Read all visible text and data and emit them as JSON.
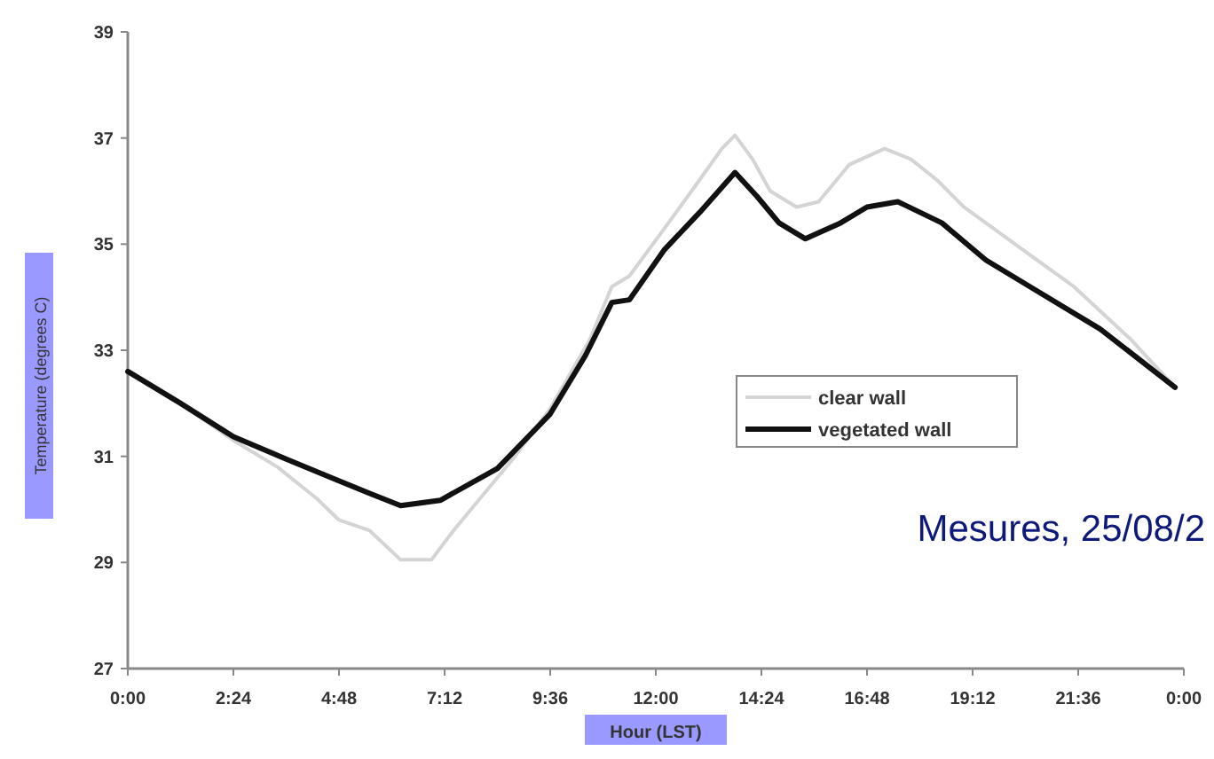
{
  "chart_data": {
    "type": "line",
    "xlabel": "Hour (LST)",
    "ylabel": "Temperature (degrees C)",
    "xlim": [
      0,
      24
    ],
    "ylim": [
      27,
      39
    ],
    "xticks": [
      {
        "value": 0,
        "label": "0:00"
      },
      {
        "value": 2.4,
        "label": "2:24"
      },
      {
        "value": 4.8,
        "label": "4:48"
      },
      {
        "value": 7.2,
        "label": "7:12"
      },
      {
        "value": 9.6,
        "label": "9:36"
      },
      {
        "value": 12,
        "label": "12:00"
      },
      {
        "value": 14.4,
        "label": "14:24"
      },
      {
        "value": 16.8,
        "label": "16:48"
      },
      {
        "value": 19.2,
        "label": "19:12"
      },
      {
        "value": 21.6,
        "label": "21:36"
      },
      {
        "value": 24,
        "label": "0:00"
      }
    ],
    "yticks": [
      27,
      29,
      31,
      33,
      35,
      37,
      39
    ],
    "grid": false,
    "legend": "right",
    "marker": "none",
    "line_style": "solid",
    "annotations": [
      "Mesures, 25/08/2"
    ],
    "series": [
      {
        "name": "clear wall",
        "color": "#d4d4d4",
        "x": [
          0,
          1.2,
          2.4,
          3.4,
          4.3,
          4.8,
          5.5,
          6.2,
          6.9,
          7.4,
          8.0,
          8.8,
          9.6,
          10.5,
          11.0,
          11.4,
          12.2,
          12.9,
          13.5,
          13.8,
          14.2,
          14.6,
          15.2,
          15.7,
          16.4,
          17.2,
          17.8,
          18.4,
          19.0,
          20.5,
          21.5,
          22.8,
          23.8
        ],
        "values": [
          32.6,
          32.0,
          31.3,
          30.8,
          30.2,
          29.8,
          29.6,
          29.05,
          29.05,
          29.6,
          30.2,
          31.0,
          31.9,
          33.2,
          34.2,
          34.4,
          35.3,
          36.1,
          36.8,
          37.05,
          36.6,
          36.0,
          35.7,
          35.8,
          36.5,
          36.8,
          36.6,
          36.2,
          35.7,
          34.8,
          34.2,
          33.2,
          32.3
        ]
      },
      {
        "name": "vegetated wall",
        "color": "#111111",
        "x": [
          0,
          1.2,
          2.4,
          3.6,
          4.76,
          5.5,
          6.2,
          7.1,
          8.4,
          9.6,
          10.4,
          11.0,
          11.4,
          12.2,
          13.0,
          13.8,
          14.3,
          14.8,
          15.4,
          16.2,
          16.8,
          17.5,
          18.5,
          19.5,
          20.5,
          22.1,
          23.8
        ],
        "values": [
          32.6,
          32.0,
          31.37,
          30.95,
          30.55,
          30.3,
          30.07,
          30.17,
          30.77,
          31.8,
          32.9,
          33.9,
          33.95,
          34.9,
          35.6,
          36.35,
          35.9,
          35.4,
          35.1,
          35.4,
          35.7,
          35.8,
          35.4,
          34.7,
          34.2,
          33.4,
          32.3
        ]
      }
    ]
  }
}
